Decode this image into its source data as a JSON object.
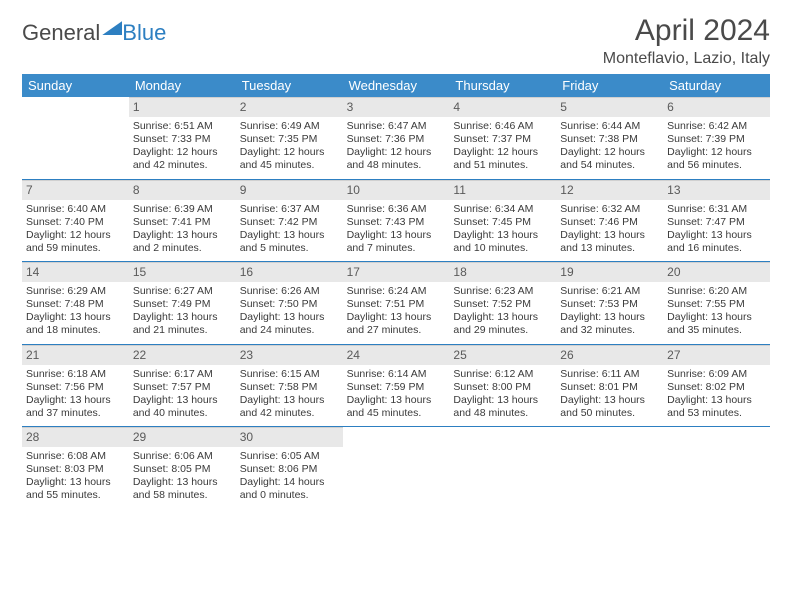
{
  "brand": {
    "part1": "General",
    "part2": "Blue"
  },
  "title": "April 2024",
  "location": "Monteflavio, Lazio, Italy",
  "dayNames": [
    "Sunday",
    "Monday",
    "Tuesday",
    "Wednesday",
    "Thursday",
    "Friday",
    "Saturday"
  ],
  "colors": {
    "headerBg": "#3b8bc9",
    "headerText": "#ffffff",
    "dayNumBg": "#e8e8e8",
    "borderColor": "#2d7fc1",
    "textColor": "#3a3a3a",
    "background": "#ffffff"
  },
  "typography": {
    "titleSize": 30,
    "locationSize": 16,
    "dayHeadSize": 13,
    "cellSize": 10.5,
    "dayNumSize": 12
  },
  "weeks": [
    [
      {
        "day": "",
        "sunrise": "",
        "sunset": "",
        "daylight": ""
      },
      {
        "day": "1",
        "sunrise": "Sunrise: 6:51 AM",
        "sunset": "Sunset: 7:33 PM",
        "daylight": "Daylight: 12 hours and 42 minutes."
      },
      {
        "day": "2",
        "sunrise": "Sunrise: 6:49 AM",
        "sunset": "Sunset: 7:35 PM",
        "daylight": "Daylight: 12 hours and 45 minutes."
      },
      {
        "day": "3",
        "sunrise": "Sunrise: 6:47 AM",
        "sunset": "Sunset: 7:36 PM",
        "daylight": "Daylight: 12 hours and 48 minutes."
      },
      {
        "day": "4",
        "sunrise": "Sunrise: 6:46 AM",
        "sunset": "Sunset: 7:37 PM",
        "daylight": "Daylight: 12 hours and 51 minutes."
      },
      {
        "day": "5",
        "sunrise": "Sunrise: 6:44 AM",
        "sunset": "Sunset: 7:38 PM",
        "daylight": "Daylight: 12 hours and 54 minutes."
      },
      {
        "day": "6",
        "sunrise": "Sunrise: 6:42 AM",
        "sunset": "Sunset: 7:39 PM",
        "daylight": "Daylight: 12 hours and 56 minutes."
      }
    ],
    [
      {
        "day": "7",
        "sunrise": "Sunrise: 6:40 AM",
        "sunset": "Sunset: 7:40 PM",
        "daylight": "Daylight: 12 hours and 59 minutes."
      },
      {
        "day": "8",
        "sunrise": "Sunrise: 6:39 AM",
        "sunset": "Sunset: 7:41 PM",
        "daylight": "Daylight: 13 hours and 2 minutes."
      },
      {
        "day": "9",
        "sunrise": "Sunrise: 6:37 AM",
        "sunset": "Sunset: 7:42 PM",
        "daylight": "Daylight: 13 hours and 5 minutes."
      },
      {
        "day": "10",
        "sunrise": "Sunrise: 6:36 AM",
        "sunset": "Sunset: 7:43 PM",
        "daylight": "Daylight: 13 hours and 7 minutes."
      },
      {
        "day": "11",
        "sunrise": "Sunrise: 6:34 AM",
        "sunset": "Sunset: 7:45 PM",
        "daylight": "Daylight: 13 hours and 10 minutes."
      },
      {
        "day": "12",
        "sunrise": "Sunrise: 6:32 AM",
        "sunset": "Sunset: 7:46 PM",
        "daylight": "Daylight: 13 hours and 13 minutes."
      },
      {
        "day": "13",
        "sunrise": "Sunrise: 6:31 AM",
        "sunset": "Sunset: 7:47 PM",
        "daylight": "Daylight: 13 hours and 16 minutes."
      }
    ],
    [
      {
        "day": "14",
        "sunrise": "Sunrise: 6:29 AM",
        "sunset": "Sunset: 7:48 PM",
        "daylight": "Daylight: 13 hours and 18 minutes."
      },
      {
        "day": "15",
        "sunrise": "Sunrise: 6:27 AM",
        "sunset": "Sunset: 7:49 PM",
        "daylight": "Daylight: 13 hours and 21 minutes."
      },
      {
        "day": "16",
        "sunrise": "Sunrise: 6:26 AM",
        "sunset": "Sunset: 7:50 PM",
        "daylight": "Daylight: 13 hours and 24 minutes."
      },
      {
        "day": "17",
        "sunrise": "Sunrise: 6:24 AM",
        "sunset": "Sunset: 7:51 PM",
        "daylight": "Daylight: 13 hours and 27 minutes."
      },
      {
        "day": "18",
        "sunrise": "Sunrise: 6:23 AM",
        "sunset": "Sunset: 7:52 PM",
        "daylight": "Daylight: 13 hours and 29 minutes."
      },
      {
        "day": "19",
        "sunrise": "Sunrise: 6:21 AM",
        "sunset": "Sunset: 7:53 PM",
        "daylight": "Daylight: 13 hours and 32 minutes."
      },
      {
        "day": "20",
        "sunrise": "Sunrise: 6:20 AM",
        "sunset": "Sunset: 7:55 PM",
        "daylight": "Daylight: 13 hours and 35 minutes."
      }
    ],
    [
      {
        "day": "21",
        "sunrise": "Sunrise: 6:18 AM",
        "sunset": "Sunset: 7:56 PM",
        "daylight": "Daylight: 13 hours and 37 minutes."
      },
      {
        "day": "22",
        "sunrise": "Sunrise: 6:17 AM",
        "sunset": "Sunset: 7:57 PM",
        "daylight": "Daylight: 13 hours and 40 minutes."
      },
      {
        "day": "23",
        "sunrise": "Sunrise: 6:15 AM",
        "sunset": "Sunset: 7:58 PM",
        "daylight": "Daylight: 13 hours and 42 minutes."
      },
      {
        "day": "24",
        "sunrise": "Sunrise: 6:14 AM",
        "sunset": "Sunset: 7:59 PM",
        "daylight": "Daylight: 13 hours and 45 minutes."
      },
      {
        "day": "25",
        "sunrise": "Sunrise: 6:12 AM",
        "sunset": "Sunset: 8:00 PM",
        "daylight": "Daylight: 13 hours and 48 minutes."
      },
      {
        "day": "26",
        "sunrise": "Sunrise: 6:11 AM",
        "sunset": "Sunset: 8:01 PM",
        "daylight": "Daylight: 13 hours and 50 minutes."
      },
      {
        "day": "27",
        "sunrise": "Sunrise: 6:09 AM",
        "sunset": "Sunset: 8:02 PM",
        "daylight": "Daylight: 13 hours and 53 minutes."
      }
    ],
    [
      {
        "day": "28",
        "sunrise": "Sunrise: 6:08 AM",
        "sunset": "Sunset: 8:03 PM",
        "daylight": "Daylight: 13 hours and 55 minutes."
      },
      {
        "day": "29",
        "sunrise": "Sunrise: 6:06 AM",
        "sunset": "Sunset: 8:05 PM",
        "daylight": "Daylight: 13 hours and 58 minutes."
      },
      {
        "day": "30",
        "sunrise": "Sunrise: 6:05 AM",
        "sunset": "Sunset: 8:06 PM",
        "daylight": "Daylight: 14 hours and 0 minutes."
      },
      {
        "day": "",
        "sunrise": "",
        "sunset": "",
        "daylight": ""
      },
      {
        "day": "",
        "sunrise": "",
        "sunset": "",
        "daylight": ""
      },
      {
        "day": "",
        "sunrise": "",
        "sunset": "",
        "daylight": ""
      },
      {
        "day": "",
        "sunrise": "",
        "sunset": "",
        "daylight": ""
      }
    ]
  ]
}
